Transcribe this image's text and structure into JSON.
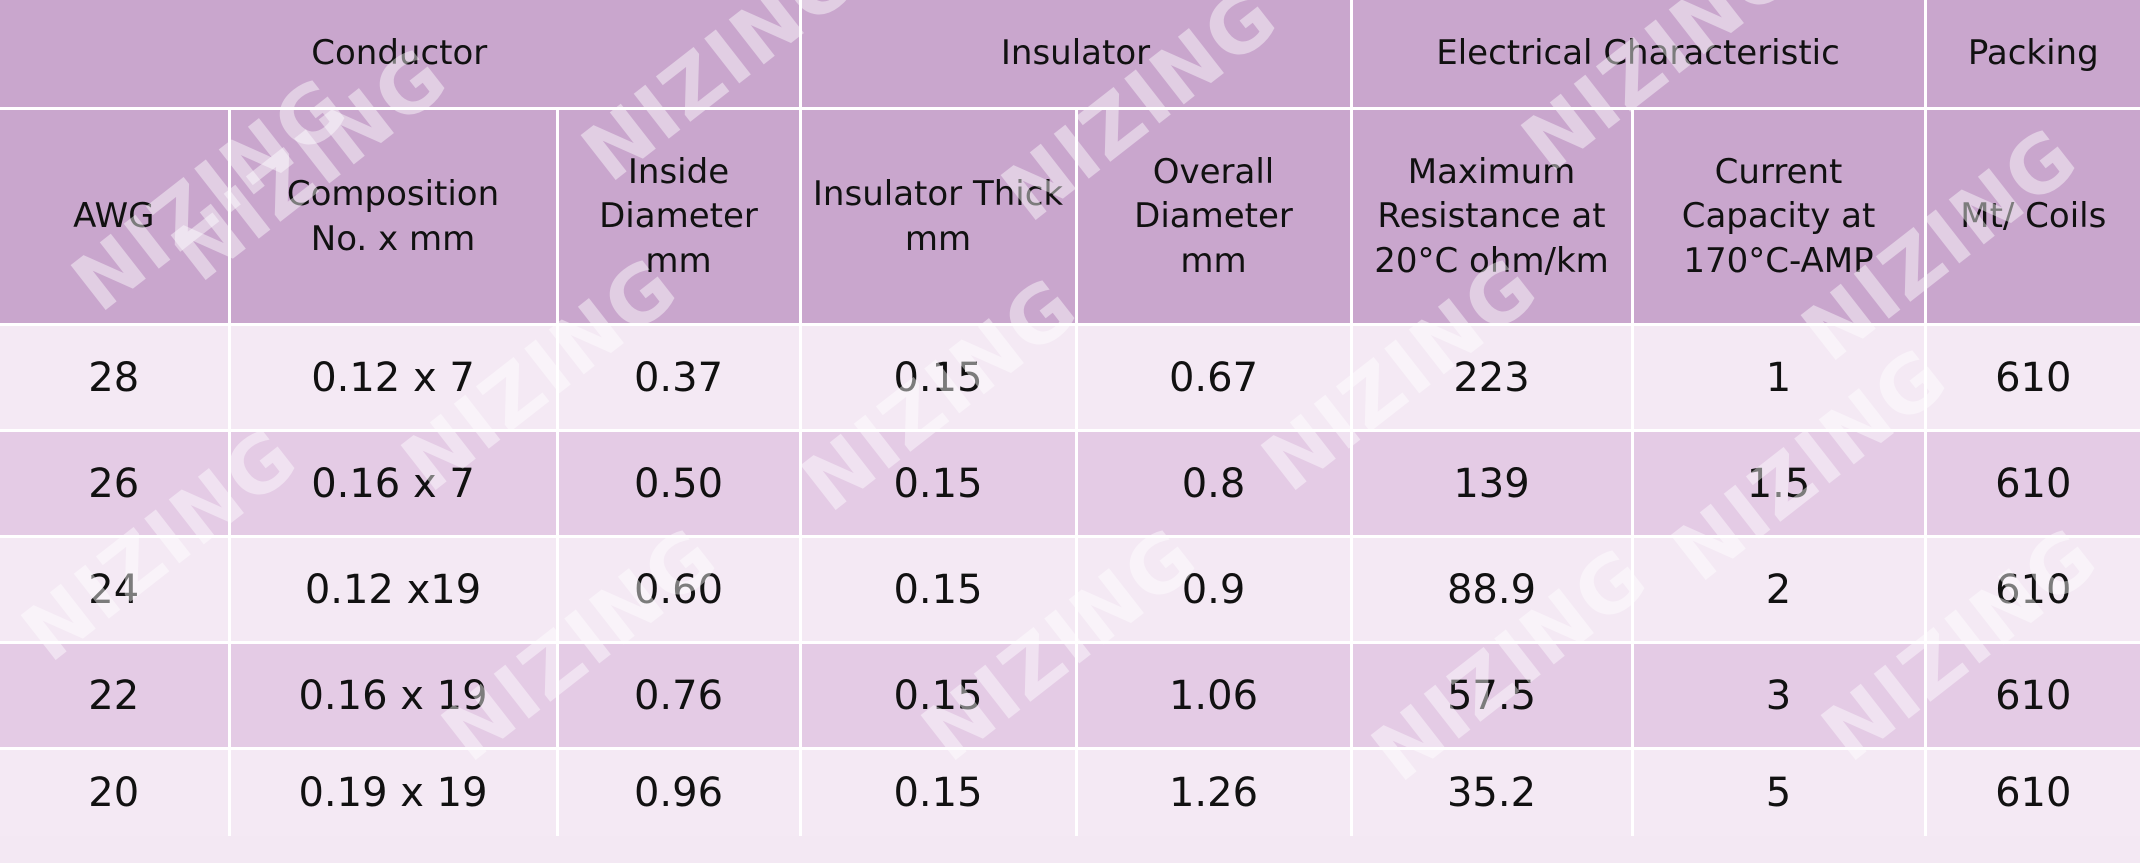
{
  "table": {
    "groups": [
      {
        "label": "Conductor",
        "span": 3
      },
      {
        "label": "Insulator",
        "span": 2
      },
      {
        "label": "Electrical Characteristic",
        "span": 2
      },
      {
        "label": "Packing",
        "span": 1
      }
    ],
    "headers": [
      "AWG",
      "Composition\nNo. x mm",
      "Inside\nDiameter\nmm",
      "Insulator Thick\nmm",
      "Overall\nDiameter\nmm",
      "Maximum\nResistance at\n20°C ohm/km",
      "Current\nCapacity at\n170°C-AMP",
      "Mt/ Coils"
    ],
    "rows": [
      [
        "28",
        "0.12 x 7",
        "0.37",
        "0.15",
        "0.67",
        "223",
        "1",
        "610"
      ],
      [
        "26",
        "0.16 x 7",
        "0.50",
        "0.15",
        "0.8",
        "139",
        "1.5",
        "610"
      ],
      [
        "24",
        "0.12 x19",
        "0.60",
        "0.15",
        "0.9",
        "88.9",
        "2",
        "610"
      ],
      [
        "22",
        "0.16 x 19",
        "0.76",
        "0.15",
        "1.06",
        "57.5",
        "3",
        "610"
      ],
      [
        "20",
        "0.19 x 19",
        "0.96",
        "0.15",
        "1.26",
        "35.2",
        "5",
        "610"
      ]
    ],
    "watermark": "NIZING"
  }
}
